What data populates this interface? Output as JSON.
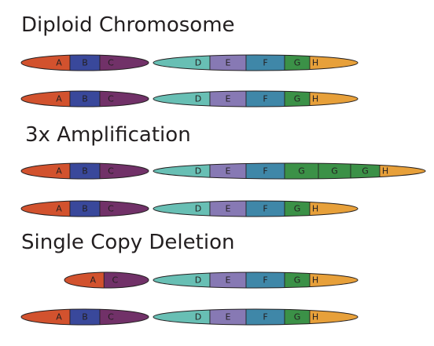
{
  "sections": [
    {
      "title": "Diploid Chromosome",
      "chromosomes": [
        {
          "p_arm": [
            {
              "label": "A",
              "color": "#d2522e"
            },
            {
              "label": "B",
              "color": "#39489b"
            },
            {
              "label": "C",
              "color": "#713168"
            }
          ],
          "q_arm": [
            {
              "label": "D",
              "color": "#68bfb4"
            },
            {
              "label": "E",
              "color": "#8779b4"
            },
            {
              "label": "F",
              "color": "#3f87a8"
            },
            {
              "label": "G",
              "color": "#3b9147"
            },
            {
              "label": "H",
              "color": "#e7a03a"
            }
          ]
        },
        {
          "p_arm": [
            {
              "label": "A",
              "color": "#d2522e"
            },
            {
              "label": "B",
              "color": "#39489b"
            },
            {
              "label": "C",
              "color": "#713168"
            }
          ],
          "q_arm": [
            {
              "label": "D",
              "color": "#68bfb4"
            },
            {
              "label": "E",
              "color": "#8779b4"
            },
            {
              "label": "F",
              "color": "#3f87a8"
            },
            {
              "label": "G",
              "color": "#3b9147"
            },
            {
              "label": "H",
              "color": "#e7a03a"
            }
          ]
        }
      ]
    },
    {
      "title": "3x Amplification",
      "chromosomes": [
        {
          "p_arm": [
            {
              "label": "A",
              "color": "#d2522e"
            },
            {
              "label": "B",
              "color": "#39489b"
            },
            {
              "label": "C",
              "color": "#713168"
            }
          ],
          "q_arm": [
            {
              "label": "D",
              "color": "#68bfb4"
            },
            {
              "label": "E",
              "color": "#8779b4"
            },
            {
              "label": "F",
              "color": "#3f87a8"
            },
            {
              "label": "G",
              "color": "#3b9147"
            },
            {
              "label": "G",
              "color": "#3b9147"
            },
            {
              "label": "G",
              "color": "#3b9147"
            },
            {
              "label": "H",
              "color": "#e7a03a"
            }
          ]
        },
        {
          "p_arm": [
            {
              "label": "A",
              "color": "#d2522e"
            },
            {
              "label": "B",
              "color": "#39489b"
            },
            {
              "label": "C",
              "color": "#713168"
            }
          ],
          "q_arm": [
            {
              "label": "D",
              "color": "#68bfb4"
            },
            {
              "label": "E",
              "color": "#8779b4"
            },
            {
              "label": "F",
              "color": "#3f87a8"
            },
            {
              "label": "G",
              "color": "#3b9147"
            },
            {
              "label": "H",
              "color": "#e7a03a"
            }
          ]
        }
      ]
    },
    {
      "title": "Single Copy Deletion",
      "chromosomes": [
        {
          "p_arm": [
            {
              "label": "A",
              "color": "#d2522e"
            },
            {
              "label": "C",
              "color": "#713168"
            }
          ],
          "q_arm": [
            {
              "label": "D",
              "color": "#68bfb4"
            },
            {
              "label": "E",
              "color": "#8779b4"
            },
            {
              "label": "F",
              "color": "#3f87a8"
            },
            {
              "label": "G",
              "color": "#3b9147"
            },
            {
              "label": "H",
              "color": "#e7a03a"
            }
          ]
        },
        {
          "p_arm": [
            {
              "label": "A",
              "color": "#d2522e"
            },
            {
              "label": "B",
              "color": "#39489b"
            },
            {
              "label": "C",
              "color": "#713168"
            }
          ],
          "q_arm": [
            {
              "label": "D",
              "color": "#68bfb4"
            },
            {
              "label": "E",
              "color": "#8779b4"
            },
            {
              "label": "F",
              "color": "#3f87a8"
            },
            {
              "label": "G",
              "color": "#3b9147"
            },
            {
              "label": "H",
              "color": "#e7a03a"
            }
          ]
        }
      ]
    }
  ]
}
